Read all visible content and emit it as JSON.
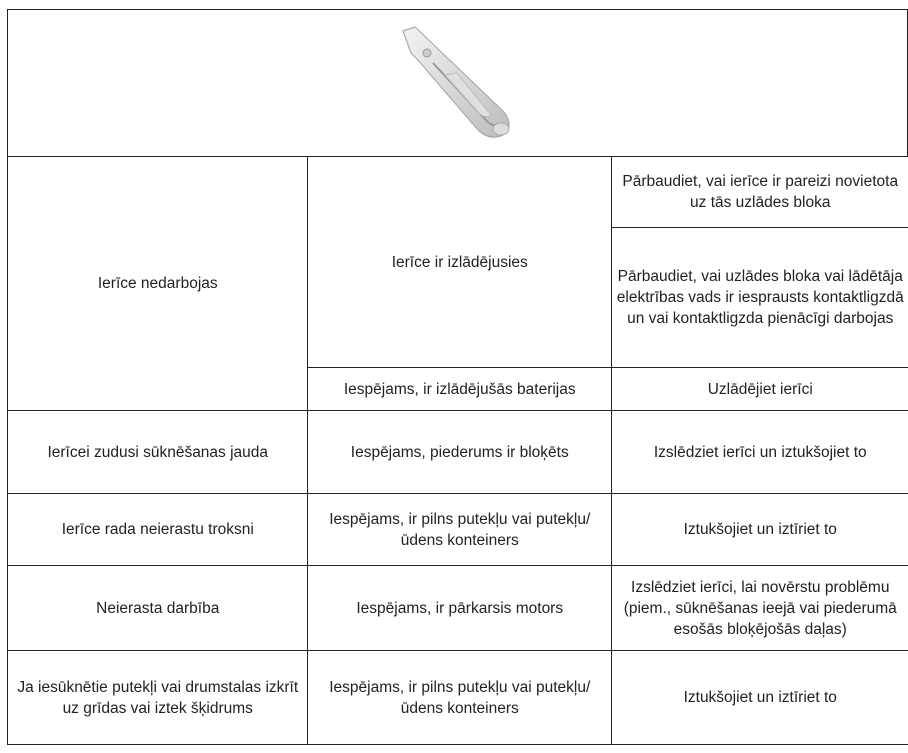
{
  "rows": [
    {
      "problem": "Ierīce nedarbojas",
      "causes": [
        {
          "cause": "Ierīce ir izlādējusies",
          "solutions": [
            "Pārbaudiet, vai ierīce ir pareizi novietota uz tās uzlādes bloka",
            "Pārbaudiet, vai uzlādes bloka vai lādētāja elektrības vads ir iesprausts kontaktligzdā un vai kontaktligzda pienācīgi darbojas"
          ]
        },
        {
          "cause": "Iespējams, ir izlādējušās baterijas",
          "solutions": [
            "Uzlādējiet ierīci"
          ]
        }
      ]
    },
    {
      "problem": "Ierīcei zudusi sūknēšanas jauda",
      "causes": [
        {
          "cause": "Iespējams, piederums ir bloķēts",
          "solutions": [
            "Izslēdziet ierīci un iztukšojiet to"
          ]
        }
      ]
    },
    {
      "problem": "Ierīce rada neierastu troksni",
      "causes": [
        {
          "cause": "Iespējams, ir pilns putekļu vai putekļu/ūdens konteiners",
          "solutions": [
            "Iztukšojiet un iztīriet to"
          ]
        }
      ]
    },
    {
      "problem": "Neierasta darbība",
      "causes": [
        {
          "cause": "Iespējams, ir pārkarsis motors",
          "solutions": [
            "Izslēdziet ierīci, lai novērstu problēmu (piem., sūknēšanas ieejā vai piederumā esošās bloķējošās daļas)"
          ]
        }
      ]
    },
    {
      "problem": "Ja iesūknētie putekļi vai drumstalas izkrīt uz grīdas vai iztek šķidrums",
      "causes": [
        {
          "cause": "Iespējams, ir pilns putekļu vai putekļu/ūdens konteiners",
          "solutions": [
            "Iztukšojiet un iztīriet to"
          ]
        }
      ]
    }
  ]
}
